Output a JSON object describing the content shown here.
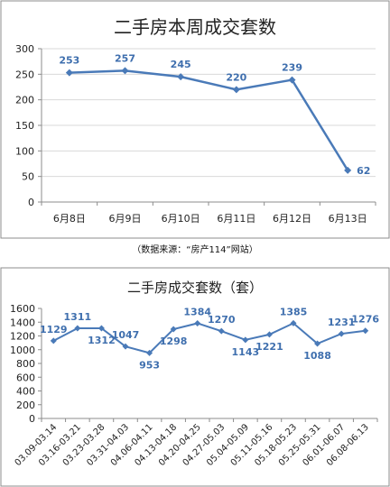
{
  "source_note": "（数据来源：“房产114”网站）",
  "colors": {
    "line": "#4a7ab8",
    "label": "#3f6fae",
    "axis": "#8c8c8c",
    "grid": "#d9d9d9",
    "title": "#222222"
  },
  "chart_data": [
    {
      "type": "line",
      "title": "二手房本周成交套数",
      "categories": [
        "6月8日",
        "6月9日",
        "6月10日",
        "6月11日",
        "6月12日",
        "6月13日"
      ],
      "values": [
        253,
        257,
        245,
        220,
        239,
        62
      ],
      "ylim": [
        0,
        300
      ],
      "yticks": [
        0,
        50,
        100,
        150,
        200,
        250,
        300
      ],
      "grid": true,
      "legend": "none"
    },
    {
      "type": "line",
      "title": "二手房成交套数（套）",
      "categories": [
        "03.09-03.14",
        "03.16-03.21",
        "03.23-03.28",
        "03.31-04.03",
        "04.06-04.11",
        "04.13-04.18",
        "04.20-04.25",
        "04.27-05.03",
        "05.04-05.09",
        "05.11-05.16",
        "05.18-05.23",
        "05.25-05.31",
        "06.01-06.07",
        "06.08-06.13"
      ],
      "values": [
        1129,
        1311,
        1312,
        1047,
        953,
        1298,
        1384,
        1270,
        1143,
        1221,
        1385,
        1088,
        1231,
        1276
      ],
      "ylim": [
        0,
        1600
      ],
      "yticks": [
        0,
        200,
        400,
        600,
        800,
        1000,
        1200,
        1400,
        1600
      ],
      "grid": false,
      "legend": "none"
    }
  ]
}
